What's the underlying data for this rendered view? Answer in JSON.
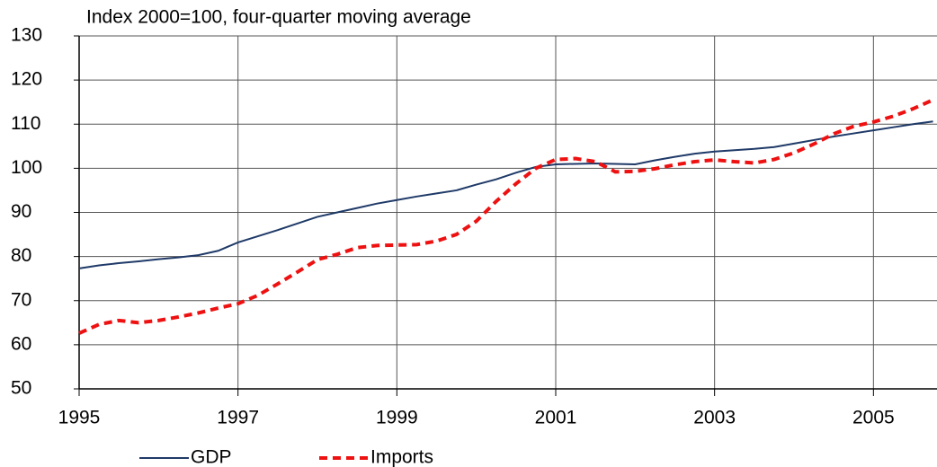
{
  "chart_data": {
    "type": "line",
    "title": "Index 2000=100, four-quarter moving average",
    "x": [
      1995,
      1995.25,
      1995.5,
      1995.75,
      1996,
      1996.25,
      1996.5,
      1996.75,
      1997,
      1997.25,
      1997.5,
      1997.75,
      1998,
      1998.25,
      1998.5,
      1998.75,
      1999,
      1999.25,
      1999.5,
      1999.75,
      2000,
      2000.25,
      2000.5,
      2000.75,
      2001,
      2001.25,
      2001.5,
      2001.75,
      2002,
      2002.25,
      2002.5,
      2002.75,
      2003,
      2003.25,
      2003.5,
      2003.75,
      2004,
      2004.25,
      2004.5,
      2004.75,
      2005,
      2005.25,
      2005.5,
      2005.75
    ],
    "series": [
      {
        "name": "GDP",
        "color": "#1f3a68",
        "dashed": false,
        "values": [
          77.3,
          78.0,
          78.5,
          78.9,
          79.4,
          79.8,
          80.3,
          81.3,
          83.2,
          84.6,
          86.0,
          87.5,
          89.0,
          90.0,
          91.0,
          92.0,
          92.8,
          93.6,
          94.3,
          95.0,
          96.3,
          97.5,
          99.0,
          100.3,
          100.9,
          101.0,
          101.1,
          101.0,
          100.9,
          101.8,
          102.6,
          103.3,
          103.8,
          104.1,
          104.4,
          104.8,
          105.6,
          106.4,
          107.2,
          107.9,
          108.6,
          109.3,
          110.0,
          110.6
        ]
      },
      {
        "name": "Imports",
        "color": "#ee1111",
        "dashed": true,
        "values": [
          62.6,
          64.6,
          65.5,
          65.0,
          65.5,
          66.3,
          67.2,
          68.3,
          69.3,
          71.2,
          73.8,
          76.5,
          79.3,
          80.5,
          82.0,
          82.5,
          82.6,
          82.7,
          83.5,
          85.0,
          88.0,
          92.5,
          96.5,
          100.0,
          102.0,
          102.2,
          101.5,
          99.2,
          99.3,
          99.9,
          100.8,
          101.5,
          101.9,
          101.5,
          101.2,
          102.0,
          103.5,
          105.5,
          107.8,
          109.5,
          110.5,
          111.8,
          113.5,
          115.5
        ]
      }
    ],
    "xlim": [
      1995,
      2005.8
    ],
    "xticks": [
      1995,
      1997,
      1999,
      2001,
      2003,
      2005
    ],
    "ylim": [
      50,
      130
    ],
    "yticks": [
      50,
      60,
      70,
      80,
      90,
      100,
      110,
      120,
      130
    ],
    "grid": true,
    "legend": "bottom"
  }
}
